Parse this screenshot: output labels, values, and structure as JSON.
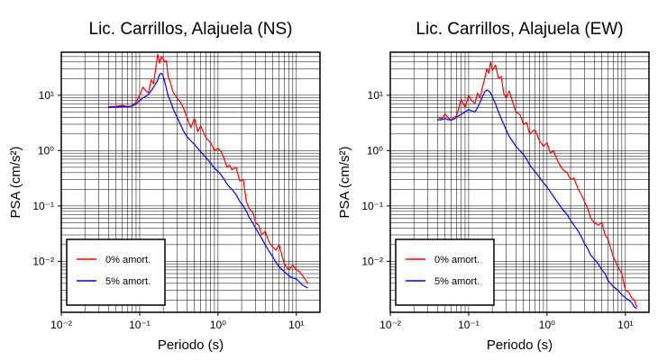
{
  "colors": {
    "series0": "#ff0000",
    "series1": "#0000ff",
    "grid": "#000000"
  },
  "chart_data": [
    {
      "type": "line",
      "title": "Lic. Carrillos, Alajuela (NS)",
      "xlabel": "Periodo (s)",
      "ylabel": "PSA (cm/s²)",
      "xscale": "log",
      "yscale": "log",
      "xlim": [
        0.01,
        20
      ],
      "ylim": [
        0.0012,
        60
      ],
      "xticks": [
        0.01,
        0.1,
        1,
        10
      ],
      "xtick_labels": [
        "10⁻²",
        "10⁻¹",
        "10⁰",
        "10¹"
      ],
      "yticks": [
        0.01,
        0.1,
        1,
        10
      ],
      "ytick_labels": [
        "10⁻²",
        "10⁻¹",
        "10⁰",
        "10¹"
      ],
      "grid": true,
      "legend": "bottom-left",
      "series": [
        {
          "name": "0% amort.",
          "x": [
            0.04,
            0.05,
            0.06,
            0.07,
            0.08,
            0.09,
            0.1,
            0.11,
            0.12,
            0.13,
            0.14,
            0.15,
            0.16,
            0.17,
            0.18,
            0.19,
            0.2,
            0.21,
            0.22,
            0.23,
            0.25,
            0.27,
            0.3,
            0.33,
            0.36,
            0.4,
            0.45,
            0.5,
            0.55,
            0.6,
            0.7,
            0.8,
            0.9,
            1.0,
            1.1,
            1.2,
            1.3,
            1.4,
            1.5,
            1.7,
            1.9,
            2.1,
            2.3,
            2.5,
            2.8,
            3.0,
            3.3,
            3.6,
            4.0,
            4.5,
            5.0,
            5.5,
            6.0,
            7.0,
            8.0,
            9.0,
            10,
            11,
            12,
            14
          ],
          "values": [
            6.2,
            6.3,
            6.6,
            6.2,
            6.5,
            7.5,
            10,
            14,
            12,
            11,
            19,
            16,
            30,
            55,
            38,
            50,
            45,
            40,
            42,
            22,
            16,
            11,
            9,
            7.5,
            6,
            4,
            2.6,
            3.8,
            2.2,
            2.8,
            1.7,
            1.4,
            1.0,
            1.1,
            0.95,
            0.7,
            0.5,
            0.55,
            0.45,
            0.5,
            0.28,
            0.3,
            0.12,
            0.09,
            0.075,
            0.05,
            0.045,
            0.03,
            0.035,
            0.022,
            0.018,
            0.016,
            0.02,
            0.009,
            0.007,
            0.0085,
            0.007,
            0.0065,
            0.0055,
            0.004
          ]
        },
        {
          "name": "5% amort.",
          "x": [
            0.04,
            0.05,
            0.06,
            0.07,
            0.08,
            0.09,
            0.1,
            0.11,
            0.12,
            0.13,
            0.14,
            0.15,
            0.16,
            0.17,
            0.18,
            0.19,
            0.2,
            0.21,
            0.22,
            0.23,
            0.25,
            0.27,
            0.3,
            0.33,
            0.36,
            0.4,
            0.45,
            0.5,
            0.55,
            0.6,
            0.7,
            0.8,
            0.9,
            1.0,
            1.1,
            1.2,
            1.3,
            1.4,
            1.5,
            1.7,
            1.9,
            2.1,
            2.3,
            2.5,
            2.8,
            3.0,
            3.3,
            3.6,
            4.0,
            4.5,
            5.0,
            5.5,
            6.0,
            7.0,
            8.0,
            9.0,
            10,
            11,
            12,
            14
          ],
          "values": [
            6.0,
            6.1,
            6.3,
            6.2,
            6.4,
            7.0,
            8.0,
            9.0,
            9.5,
            10.5,
            12,
            14,
            16,
            19,
            24,
            25,
            22,
            17,
            13,
            10,
            7.5,
            5.5,
            4.0,
            3.0,
            2.3,
            1.8,
            1.5,
            1.3,
            1.1,
            0.95,
            0.75,
            0.6,
            0.48,
            0.42,
            0.36,
            0.3,
            0.25,
            0.22,
            0.2,
            0.16,
            0.12,
            0.1,
            0.08,
            0.062,
            0.048,
            0.04,
            0.032,
            0.026,
            0.02,
            0.015,
            0.012,
            0.0095,
            0.008,
            0.0065,
            0.0055,
            0.005,
            0.0048,
            0.0042,
            0.0037,
            0.0033
          ]
        }
      ]
    },
    {
      "type": "line",
      "title": "Lic. Carrillos, Alajuela (EW)",
      "xlabel": "Periodo (s)",
      "ylabel": "PSA (cm/s²)",
      "xscale": "log",
      "yscale": "log",
      "xlim": [
        0.01,
        20
      ],
      "ylim": [
        0.0012,
        60
      ],
      "xticks": [
        0.01,
        0.1,
        1,
        10
      ],
      "xtick_labels": [
        "10⁻²",
        "10⁻¹",
        "10⁰",
        "10¹"
      ],
      "yticks": [
        0.01,
        0.1,
        1,
        10
      ],
      "ytick_labels": [
        "10⁻²",
        "10⁻¹",
        "10⁰",
        "10¹"
      ],
      "grid": true,
      "legend": "bottom-left",
      "series": [
        {
          "name": "0% amort.",
          "x": [
            0.04,
            0.045,
            0.05,
            0.055,
            0.06,
            0.065,
            0.07,
            0.08,
            0.09,
            0.1,
            0.11,
            0.12,
            0.13,
            0.14,
            0.15,
            0.16,
            0.17,
            0.18,
            0.19,
            0.2,
            0.22,
            0.24,
            0.26,
            0.28,
            0.3,
            0.33,
            0.36,
            0.4,
            0.45,
            0.5,
            0.55,
            0.6,
            0.7,
            0.8,
            0.9,
            1.0,
            1.1,
            1.2,
            1.4,
            1.6,
            1.8,
            2.0,
            2.2,
            2.5,
            2.8,
            3.0,
            3.3,
            3.6,
            4.0,
            4.5,
            5.0,
            5.5,
            6.0,
            7.0,
            8.0,
            9.0,
            10,
            11,
            12,
            13,
            14
          ],
          "values": [
            4.0,
            3.8,
            4.6,
            3.9,
            3.5,
            4.0,
            4.2,
            8.5,
            6,
            10,
            8,
            7,
            11,
            9,
            14,
            20,
            30,
            25,
            40,
            28,
            35,
            20,
            22,
            11,
            9,
            12,
            8,
            5,
            4.5,
            3,
            3.2,
            2,
            2.4,
            1.5,
            1.2,
            1.4,
            0.9,
            1.0,
            0.6,
            0.45,
            0.4,
            0.3,
            0.32,
            0.2,
            0.15,
            0.12,
            0.09,
            0.06,
            0.05,
            0.045,
            0.05,
            0.03,
            0.025,
            0.012,
            0.008,
            0.006,
            0.003,
            0.0028,
            0.0022,
            0.002,
            0.0015
          ]
        },
        {
          "name": "5% amort.",
          "x": [
            0.04,
            0.045,
            0.05,
            0.055,
            0.06,
            0.065,
            0.07,
            0.08,
            0.09,
            0.1,
            0.11,
            0.12,
            0.13,
            0.14,
            0.15,
            0.16,
            0.17,
            0.18,
            0.19,
            0.2,
            0.22,
            0.24,
            0.26,
            0.28,
            0.3,
            0.33,
            0.36,
            0.4,
            0.45,
            0.5,
            0.55,
            0.6,
            0.7,
            0.8,
            0.9,
            1.0,
            1.1,
            1.2,
            1.4,
            1.6,
            1.8,
            2.0,
            2.2,
            2.5,
            2.8,
            3.0,
            3.3,
            3.6,
            4.0,
            4.5,
            5.0,
            5.5,
            6.0,
            7.0,
            8.0,
            9.0,
            10,
            11,
            12,
            13,
            14
          ],
          "values": [
            3.6,
            3.6,
            3.8,
            3.6,
            3.6,
            3.7,
            4.0,
            4.5,
            5.0,
            5.5,
            5.2,
            5.0,
            6.0,
            7.5,
            9.5,
            11.5,
            12.5,
            12,
            11,
            9.5,
            7.0,
            5.0,
            3.8,
            3.0,
            2.4,
            1.8,
            1.5,
            1.2,
            1.0,
            0.85,
            0.7,
            0.55,
            0.42,
            0.33,
            0.26,
            0.22,
            0.18,
            0.15,
            0.11,
            0.085,
            0.07,
            0.055,
            0.045,
            0.035,
            0.026,
            0.021,
            0.017,
            0.013,
            0.011,
            0.009,
            0.007,
            0.006,
            0.0045,
            0.0035,
            0.003,
            0.0025,
            0.0022,
            0.002,
            0.0018,
            0.0015,
            0.0014
          ]
        }
      ]
    }
  ]
}
